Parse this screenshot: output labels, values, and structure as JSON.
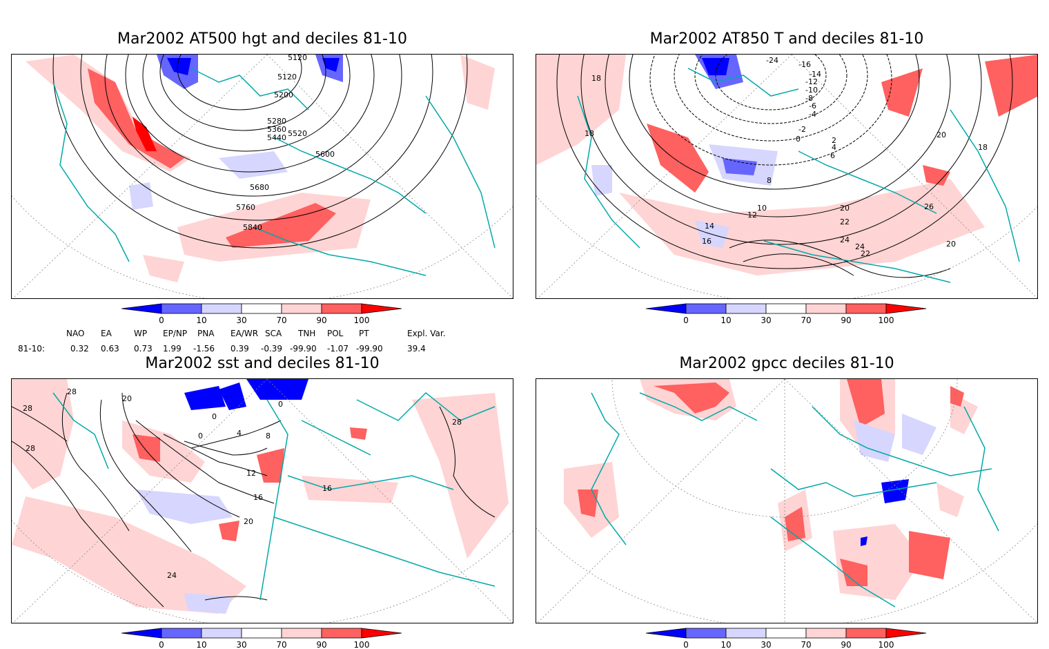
{
  "panels": [
    {
      "title": "Mar2002 AT500 hgt and deciles 81-10",
      "contour_labels": [
        "5120",
        "5120",
        "5200",
        "5280",
        "5360",
        "5440",
        "5520",
        "5600",
        "5680",
        "5760",
        "5840"
      ]
    },
    {
      "title": "Mar2002 AT850 T and deciles 81-10",
      "contour_labels": [
        "-24",
        "-16",
        "-14",
        "-12",
        "-10",
        "-8",
        "-6",
        "-4",
        "-2",
        "0",
        "2",
        "4",
        "6",
        "8",
        "10",
        "12",
        "14",
        "16",
        "18",
        "18",
        "18",
        "20",
        "20",
        "20",
        "22",
        "22",
        "24",
        "24",
        "26"
      ]
    },
    {
      "title": "Mar2002 sst and deciles 81-10",
      "contour_labels": [
        "28",
        "28",
        "28",
        "24",
        "20",
        "20",
        "16",
        "12",
        "8",
        "4",
        "0",
        "0",
        "0",
        "16",
        "28"
      ]
    },
    {
      "title": "Mar2002 gpcc deciles 81-10",
      "contour_labels": []
    }
  ],
  "colorbar": {
    "ticks": [
      "0",
      "10",
      "30",
      "70",
      "90",
      "100"
    ],
    "colors": [
      "#0000ff",
      "#6666ff",
      "#d6d6ff",
      "#ffffff",
      "#ffd4d4",
      "#ff6060",
      "#ff0000"
    ]
  },
  "indices": {
    "headers": [
      "NAO",
      "EA",
      "WP",
      "EP/NP",
      "PNA",
      "EA/WR",
      "SCA",
      "TNH",
      "POL",
      "PT",
      "Expl. Var."
    ],
    "row_label": "81-10:",
    "values": [
      "0.32",
      "0.63",
      "0.73",
      "1.99",
      "-1.56",
      "0.39",
      "-0.39",
      "-99.90",
      "-1.07",
      "-99.90",
      "39.4"
    ]
  },
  "colors": {
    "coast": "#00a8a8",
    "contour": "#000000",
    "grid": "#888888"
  }
}
